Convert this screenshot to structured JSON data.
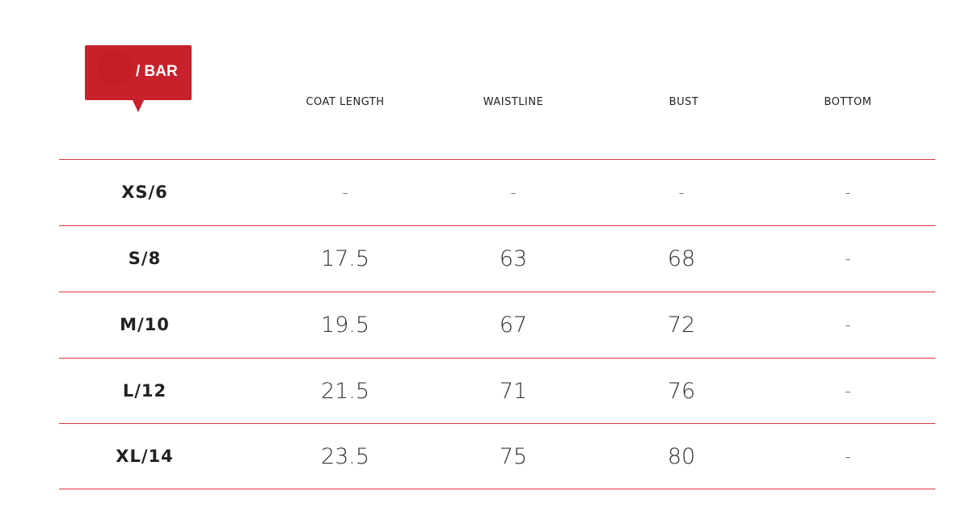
{
  "badge": {
    "label": "/ BAR",
    "color": "#c8212b"
  },
  "headers": [
    "COAT LENGTH",
    "WAISTLINE",
    "BUST",
    "BOTTOM"
  ],
  "rows": [
    {
      "size": "XS/6",
      "values": [
        "-",
        "-",
        "-",
        "-"
      ]
    },
    {
      "size": "S/8",
      "values": [
        "17.5",
        "63",
        "68",
        "-"
      ]
    },
    {
      "size": "M/10",
      "values": [
        "19.5",
        "67",
        "72",
        "-"
      ]
    },
    {
      "size": "L/12",
      "values": [
        "21.5",
        "71",
        "76",
        "-"
      ]
    },
    {
      "size": "XL/14",
      "values": [
        "23.5",
        "75",
        "80",
        "-"
      ]
    }
  ]
}
